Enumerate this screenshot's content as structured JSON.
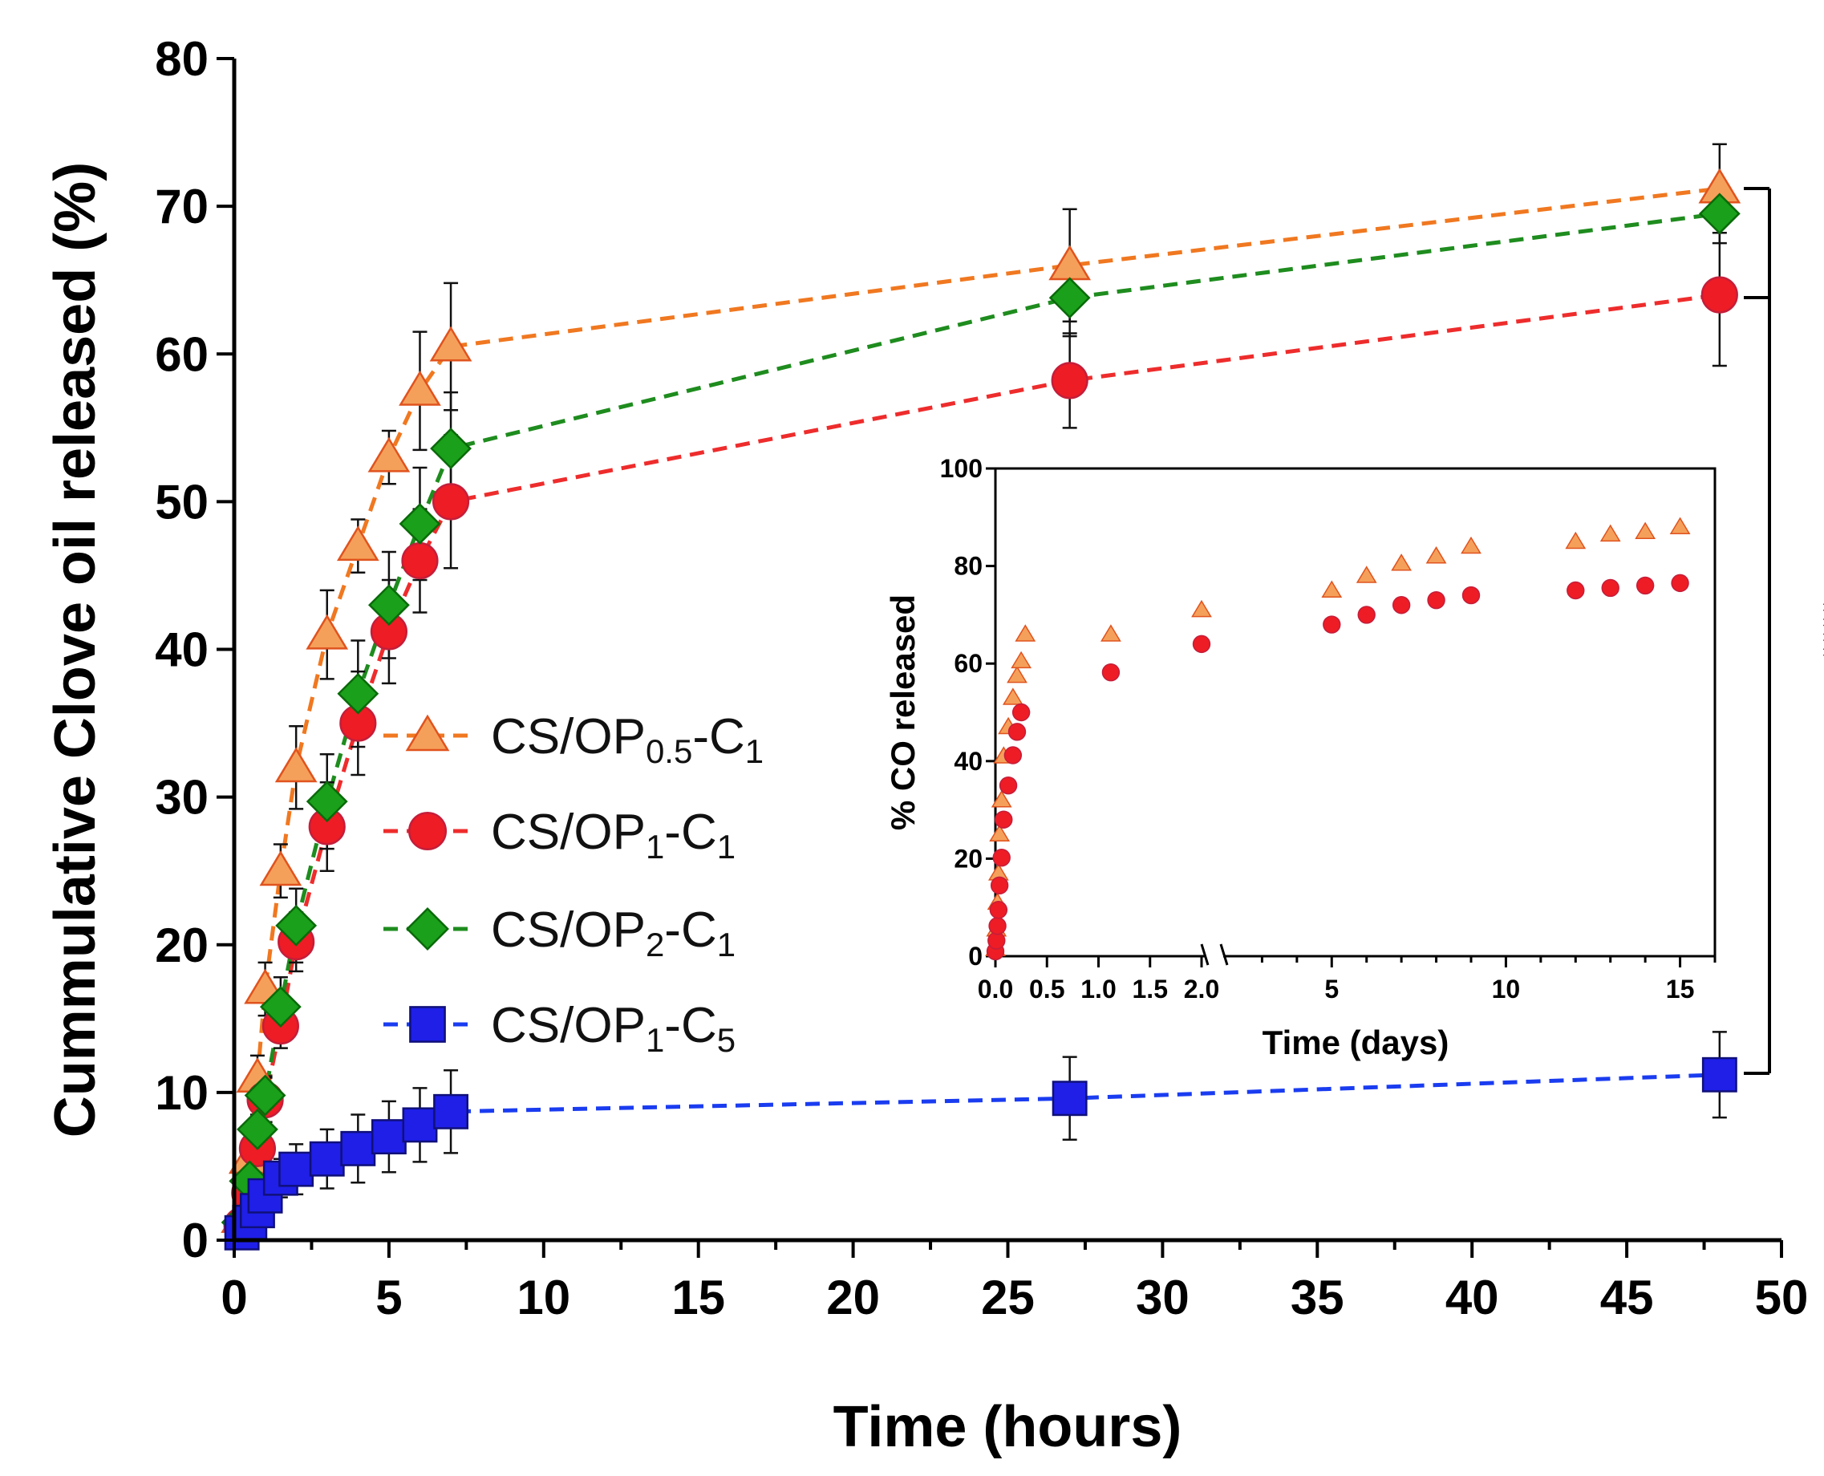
{
  "chart_data": [
    {
      "type": "scatter",
      "title": "",
      "xlabel": "Time (hours)",
      "ylabel": "Cummulative Clove oil released (%)",
      "xlim": [
        0,
        50
      ],
      "ylim": [
        0,
        80
      ],
      "xticks": [
        0,
        5,
        10,
        15,
        20,
        25,
        30,
        35,
        40,
        45,
        50
      ],
      "xtick_labels": [
        "0",
        "5",
        "10",
        "15",
        "20",
        "25",
        "30",
        "35",
        "40",
        "45",
        "50"
      ],
      "yticks": [
        0,
        10,
        20,
        30,
        40,
        50,
        60,
        70,
        80
      ],
      "ytick_labels": [
        "0",
        "10",
        "20",
        "30",
        "40",
        "50",
        "60",
        "70",
        "80"
      ],
      "legend_position": "center-left",
      "significance": {
        "label": "****",
        "between": [
          "CS/OP0.5-C1",
          "CS/OP1-C5"
        ]
      },
      "series": [
        {
          "name": "CS/OP0.5-C1",
          "legend": {
            "base": "CS/OP",
            "sub1": "0.5",
            "mid": "-C",
            "sub2": "1"
          },
          "marker": "triangle",
          "fill": "#F5A05A",
          "stroke": "#E0531E",
          "line_color": "#F07820",
          "x": [
            0.25,
            0.5,
            0.75,
            1,
            1.5,
            2,
            3,
            4,
            5,
            6,
            7,
            27,
            48
          ],
          "y": [
            1.5,
            5.5,
            11,
            17,
            25,
            32,
            41,
            47,
            53,
            57.5,
            60.5,
            66,
            71.2
          ],
          "err": [
            0.5,
            0.8,
            1.5,
            1.8,
            1.8,
            2.8,
            3,
            1.8,
            1.8,
            4,
            4.3,
            3.8,
            3
          ]
        },
        {
          "name": "CS/OP1-C1",
          "legend": {
            "base": "CS/OP",
            "sub1": "1",
            "mid": "-C",
            "sub2": "1"
          },
          "marker": "circle",
          "fill": "#EE1C25",
          "stroke": "#C41E3A",
          "line_color": "#EE2C2C",
          "x": [
            0.25,
            0.5,
            0.75,
            1,
            1.5,
            2,
            3,
            4,
            5,
            6,
            7,
            27,
            48
          ],
          "y": [
            1,
            3.2,
            6.2,
            9.5,
            14.5,
            20.2,
            28,
            35,
            41.2,
            46,
            50,
            58.2,
            64
          ],
          "err": [
            0.4,
            0.8,
            1,
            1.5,
            1.5,
            2,
            3,
            3.5,
            3.5,
            3.5,
            4.5,
            3.2,
            4.8
          ]
        },
        {
          "name": "CS/OP2-C1",
          "legend": {
            "base": "CS/OP",
            "sub1": "2",
            "mid": "-C",
            "sub2": "1"
          },
          "marker": "diamond",
          "fill": "#1AA01A",
          "stroke": "#0A6A0A",
          "line_color": "#1E8C1E",
          "x": [
            0.25,
            0.5,
            0.75,
            1,
            1.5,
            2,
            3,
            4,
            5,
            6,
            7,
            27,
            48
          ],
          "y": [
            1.2,
            4,
            7.5,
            9.8,
            15.8,
            21.3,
            29.7,
            37,
            43,
            48.5,
            53.6,
            63.8,
            69.5
          ],
          "err": [
            0.4,
            0.8,
            1,
            1.3,
            2,
            2.5,
            3.2,
            3.6,
            3.6,
            3.8,
            3.8,
            2.6,
            2
          ]
        },
        {
          "name": "CS/OP1-C5",
          "legend": {
            "base": "CS/OP",
            "sub1": "1",
            "mid": "-C",
            "sub2": "5"
          },
          "marker": "square",
          "fill": "#1F1FE8",
          "stroke": "#10107A",
          "line_color": "#1A3CF0",
          "x": [
            0.25,
            0.5,
            0.75,
            1,
            1.5,
            2,
            3,
            4,
            5,
            6,
            7,
            27,
            48
          ],
          "y": [
            0.5,
            1.2,
            2,
            3,
            4.2,
            4.8,
            5.5,
            6.2,
            7,
            7.8,
            8.7,
            9.6,
            11.2
          ],
          "err": [
            0.2,
            0.5,
            0.8,
            1,
            1.3,
            1.7,
            2,
            2.3,
            2.4,
            2.5,
            2.8,
            2.8,
            2.9
          ]
        }
      ]
    },
    {
      "type": "scatter",
      "title": "",
      "xlabel": "Time (days)",
      "ylabel": "% CO released",
      "ylim": [
        0,
        100
      ],
      "yticks": [
        0,
        20,
        40,
        60,
        80,
        100
      ],
      "ytick_labels": [
        "0",
        "20",
        "40",
        "60",
        "80",
        "100"
      ],
      "x_segments": [
        {
          "range": [
            0,
            2
          ],
          "ticks": [
            0,
            0.5,
            1,
            1.5,
            2
          ],
          "tick_labels": [
            "0.0",
            "0.5",
            "1.0",
            "1.5",
            "2.0"
          ]
        },
        {
          "range": [
            2,
            16
          ],
          "ticks": [
            5,
            10,
            15
          ],
          "tick_labels": [
            "5",
            "10",
            "15"
          ]
        }
      ],
      "series": [
        {
          "name": "CS/OP0.5-C1",
          "marker": "triangle",
          "fill": "#F5A05A",
          "stroke": "#E0531E",
          "x": [
            0,
            0.01,
            0.02,
            0.03,
            0.04,
            0.06,
            0.08,
            0.125,
            0.17,
            0.21,
            0.25,
            0.29,
            1.12,
            2,
            5,
            6,
            7,
            8,
            9,
            12,
            13,
            14,
            15
          ],
          "y": [
            1.5,
            5.5,
            11,
            17,
            25,
            32,
            41,
            47,
            53,
            57.5,
            60.5,
            66,
            66,
            71,
            75,
            78,
            80.5,
            82,
            84,
            85,
            86.5,
            87,
            88
          ]
        },
        {
          "name": "CS/OP1-C1",
          "marker": "circle",
          "fill": "#EE1C25",
          "stroke": "#C41E3A",
          "x": [
            0,
            0.01,
            0.02,
            0.03,
            0.04,
            0.06,
            0.08,
            0.125,
            0.17,
            0.21,
            0.25,
            1.12,
            2,
            5,
            6,
            7,
            8,
            9,
            12,
            13,
            14,
            15
          ],
          "y": [
            1,
            3.2,
            6.2,
            9.5,
            14.5,
            20.2,
            28,
            35,
            41.2,
            46,
            50,
            58.2,
            64,
            68,
            70,
            72,
            73,
            74,
            75,
            75.5,
            76,
            76.5
          ]
        }
      ]
    }
  ]
}
